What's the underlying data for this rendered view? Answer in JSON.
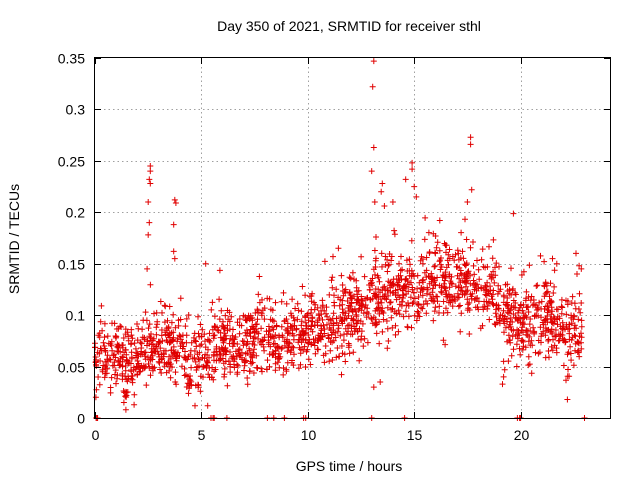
{
  "chart_data": {
    "type": "scatter",
    "title": "Day 350 of 2021, SRMTID for receiver sthl",
    "xlabel": "GPS time / hours",
    "ylabel": "SRMTID / TECUs",
    "xlim": [
      0,
      24.2
    ],
    "ylim": [
      0,
      0.35
    ],
    "x_ticks": [
      0,
      5,
      10,
      15,
      20
    ],
    "x_tick_labels": [
      "0",
      "5",
      "10",
      "15",
      "20"
    ],
    "y_ticks": [
      0,
      0.05,
      0.1,
      0.15,
      0.2,
      0.25,
      0.3,
      0.35
    ],
    "y_tick_labels": [
      "0",
      "0.05",
      "0.1",
      "0.15",
      "0.2",
      "0.25",
      "0.3",
      "0.35"
    ],
    "grid": true,
    "marker": "plus",
    "series": [
      {
        "name": "SRMTID",
        "color": "#e00000",
        "profile": [
          {
            "x": 0.0,
            "y": 0.066
          },
          {
            "x": 1.0,
            "y": 0.06
          },
          {
            "x": 1.5,
            "y": 0.045
          },
          {
            "x": 2.0,
            "y": 0.055
          },
          {
            "x": 3.0,
            "y": 0.07
          },
          {
            "x": 4.0,
            "y": 0.07
          },
          {
            "x": 4.5,
            "y": 0.055
          },
          {
            "x": 5.0,
            "y": 0.06
          },
          {
            "x": 6.0,
            "y": 0.075
          },
          {
            "x": 7.0,
            "y": 0.07
          },
          {
            "x": 8.0,
            "y": 0.075
          },
          {
            "x": 9.0,
            "y": 0.075
          },
          {
            "x": 10.0,
            "y": 0.085
          },
          {
            "x": 11.0,
            "y": 0.095
          },
          {
            "x": 12.0,
            "y": 0.1
          },
          {
            "x": 13.0,
            "y": 0.11
          },
          {
            "x": 14.0,
            "y": 0.125
          },
          {
            "x": 15.0,
            "y": 0.12
          },
          {
            "x": 16.0,
            "y": 0.13
          },
          {
            "x": 17.0,
            "y": 0.13
          },
          {
            "x": 18.0,
            "y": 0.13
          },
          {
            "x": 19.0,
            "y": 0.11
          },
          {
            "x": 19.5,
            "y": 0.095
          },
          {
            "x": 20.0,
            "y": 0.09
          },
          {
            "x": 21.0,
            "y": 0.1
          },
          {
            "x": 22.0,
            "y": 0.075
          },
          {
            "x": 22.9,
            "y": 0.085
          }
        ],
        "spread": 0.034,
        "count": 1900,
        "seed": 35021,
        "outliers": [
          {
            "x": 2.6,
            "y": 0.245
          },
          {
            "x": 2.6,
            "y": 0.24
          },
          {
            "x": 2.55,
            "y": 0.232
          },
          {
            "x": 2.6,
            "y": 0.228
          },
          {
            "x": 2.5,
            "y": 0.21
          },
          {
            "x": 2.55,
            "y": 0.19
          },
          {
            "x": 2.5,
            "y": 0.178
          },
          {
            "x": 2.45,
            "y": 0.145
          },
          {
            "x": 3.75,
            "y": 0.212
          },
          {
            "x": 3.8,
            "y": 0.209
          },
          {
            "x": 3.7,
            "y": 0.188
          },
          {
            "x": 3.7,
            "y": 0.162
          },
          {
            "x": 3.75,
            "y": 0.155
          },
          {
            "x": 5.2,
            "y": 0.15
          },
          {
            "x": 13.1,
            "y": 0.347
          },
          {
            "x": 13.05,
            "y": 0.322
          },
          {
            "x": 13.1,
            "y": 0.263
          },
          {
            "x": 13.0,
            "y": 0.24
          },
          {
            "x": 13.15,
            "y": 0.21
          },
          {
            "x": 13.5,
            "y": 0.228
          },
          {
            "x": 13.45,
            "y": 0.22
          },
          {
            "x": 14.6,
            "y": 0.232
          },
          {
            "x": 14.9,
            "y": 0.248
          },
          {
            "x": 14.9,
            "y": 0.242
          },
          {
            "x": 15.0,
            "y": 0.225
          },
          {
            "x": 14.0,
            "y": 0.21
          },
          {
            "x": 15.1,
            "y": 0.215
          },
          {
            "x": 17.65,
            "y": 0.273
          },
          {
            "x": 17.65,
            "y": 0.266
          },
          {
            "x": 17.7,
            "y": 0.222
          },
          {
            "x": 17.5,
            "y": 0.21
          },
          {
            "x": 16.2,
            "y": 0.192
          },
          {
            "x": 13.4,
            "y": 0.035
          },
          {
            "x": 13.1,
            "y": 0.03
          },
          {
            "x": 19.2,
            "y": 0.055
          },
          {
            "x": 19.25,
            "y": 0.047
          },
          {
            "x": 19.2,
            "y": 0.04
          },
          {
            "x": 19.15,
            "y": 0.033
          },
          {
            "x": 22.2,
            "y": 0.018
          },
          {
            "x": 1.45,
            "y": 0.008
          },
          {
            "x": 22.6,
            "y": 0.16
          },
          {
            "x": 21.5,
            "y": 0.155
          },
          {
            "x": 21.7,
            "y": 0.15
          },
          {
            "x": 22.75,
            "y": 0.148
          },
          {
            "x": 22.85,
            "y": 0.145
          }
        ],
        "zero_hours": [
          0.05,
          0.1,
          0.12,
          5.45,
          5.55,
          5.6,
          6.2,
          8.1,
          8.4,
          8.9,
          9.8,
          9.9,
          13.0,
          14.55,
          19.85,
          19.95,
          20.0,
          23.0
        ]
      }
    ]
  }
}
